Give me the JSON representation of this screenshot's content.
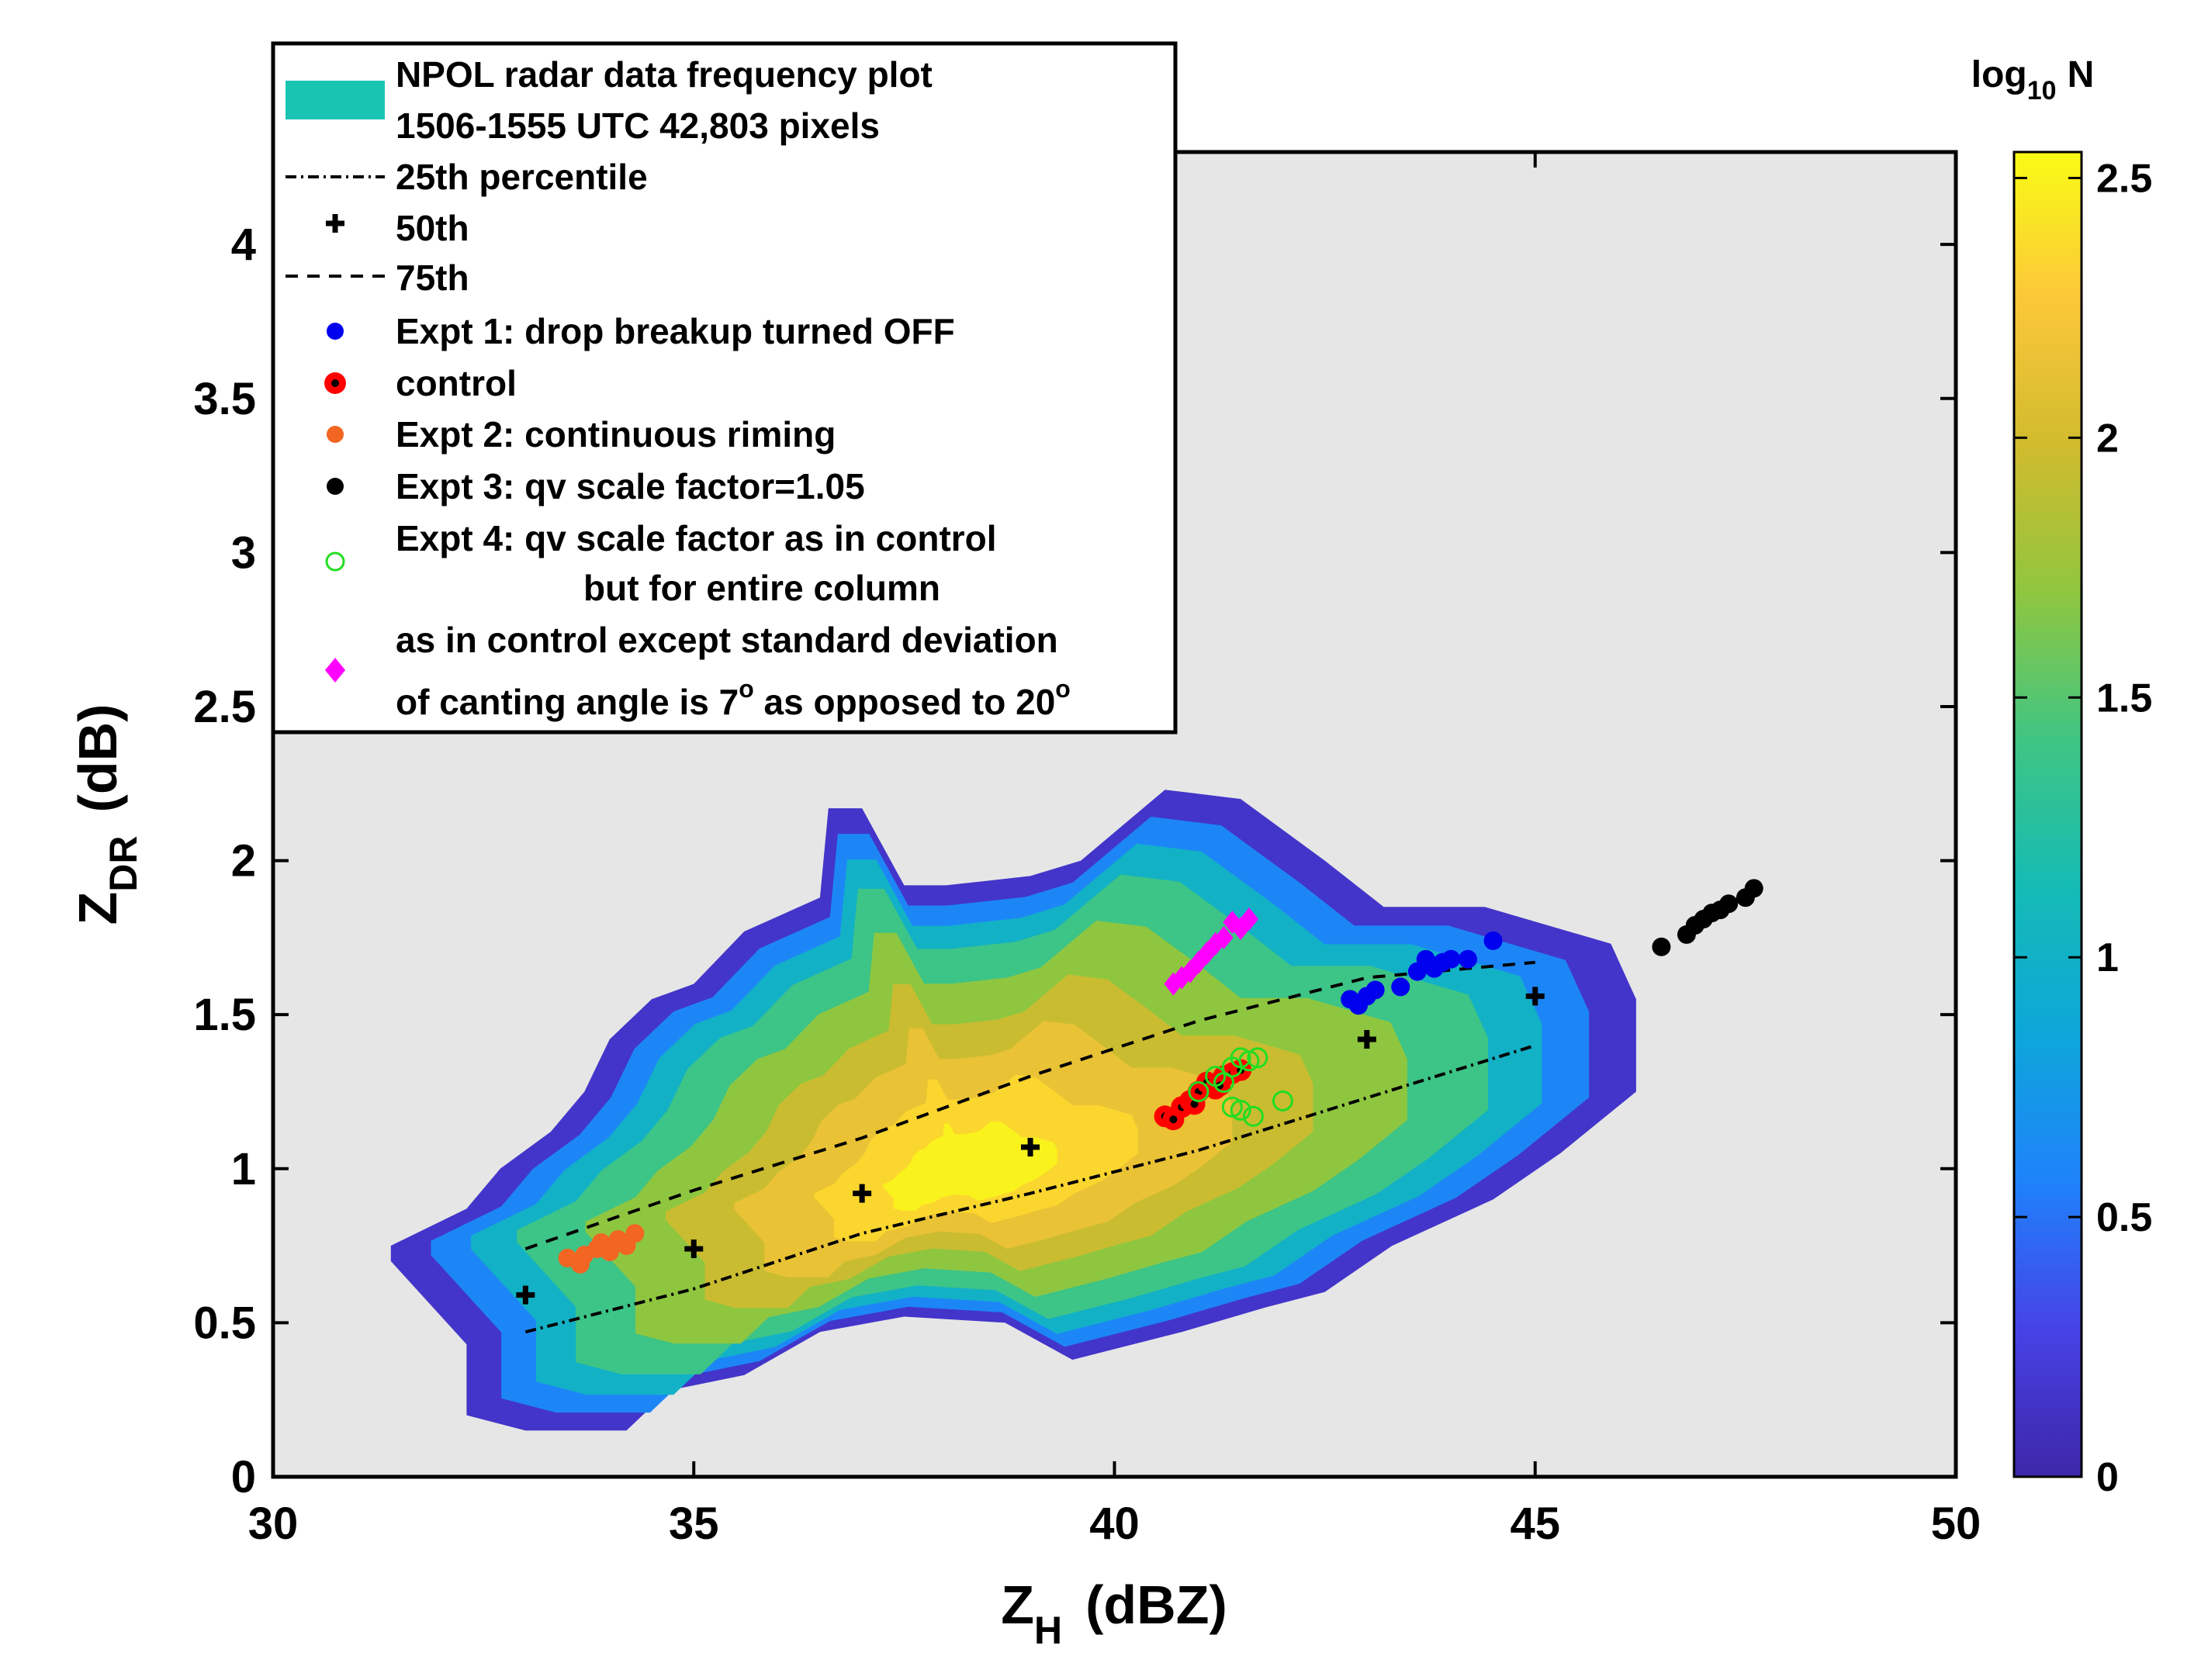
{
  "chart_data": {
    "type": "scatter",
    "title": "",
    "xlabel": {
      "main": "Z",
      "sub": "H",
      "unit": "(dBZ)"
    },
    "ylabel": {
      "main": "Z",
      "sub": "DR",
      "unit": "(dB)"
    },
    "xlim": [
      30,
      50
    ],
    "ylim": [
      0,
      4.3
    ],
    "xticks": [
      30,
      35,
      40,
      45,
      50
    ],
    "yticks": [
      0,
      0.5,
      1,
      1.5,
      2,
      2.5,
      3,
      3.5,
      4
    ],
    "xtick_labels": [
      "30",
      "35",
      "40",
      "45",
      "50"
    ],
    "ytick_labels": [
      "0",
      "0.5",
      "1",
      "1.5",
      "2",
      "2.5",
      "3",
      "3.5",
      "4"
    ],
    "grid": false,
    "legend_placement": "top-left",
    "background_color": "#e6e6e6",
    "colorbar": {
      "title": {
        "main": "log",
        "sub": "10",
        "var": "N"
      },
      "min": 0,
      "max": 2.55,
      "ticks": [
        0,
        0.5,
        1,
        1.5,
        2,
        2.5
      ],
      "tick_labels": [
        "0",
        "0.5",
        "1",
        "1.5",
        "2",
        "2.5"
      ],
      "colormap": "parula",
      "colors": [
        "#3e26a8",
        "#4742e6",
        "#1f82fb",
        "#0ea6da",
        "#15bbb5",
        "#3fc584",
        "#8fc640",
        "#d1bb2e",
        "#fcc73a",
        "#f9fb15"
      ]
    },
    "heatmap": {
      "name": "NPOL radar data frequency plot",
      "time_range": "1506-1555 UTC",
      "pixels": "42,803 pixels",
      "color": "#1ac4b3",
      "envelope": [
        [
          31.4,
          0.7
        ],
        [
          32.3,
          0.43
        ],
        [
          32.3,
          0.2
        ],
        [
          33,
          0.15
        ],
        [
          34.2,
          0.15
        ],
        [
          34.7,
          0.28
        ],
        [
          35.6,
          0.33
        ],
        [
          36.5,
          0.47
        ],
        [
          37.5,
          0.52
        ],
        [
          38.7,
          0.5
        ],
        [
          39.5,
          0.38
        ],
        [
          40.8,
          0.47
        ],
        [
          41.8,
          0.55
        ],
        [
          42.5,
          0.6
        ],
        [
          43.3,
          0.75
        ],
        [
          44.5,
          0.9
        ],
        [
          45.3,
          1.05
        ],
        [
          46.2,
          1.25
        ],
        [
          46.2,
          1.55
        ],
        [
          45.9,
          1.73
        ],
        [
          44.4,
          1.85
        ],
        [
          43.2,
          1.85
        ],
        [
          42.5,
          2.0
        ],
        [
          41.5,
          2.2
        ],
        [
          40.6,
          2.23
        ],
        [
          39.6,
          2.0
        ],
        [
          39.0,
          1.95
        ],
        [
          38.0,
          1.92
        ],
        [
          37.5,
          1.92
        ],
        [
          37.4,
          1.97
        ],
        [
          37.0,
          2.17
        ],
        [
          36.6,
          2.17
        ],
        [
          36.5,
          1.88
        ],
        [
          35.6,
          1.77
        ],
        [
          35.0,
          1.6
        ],
        [
          34.5,
          1.55
        ],
        [
          34.0,
          1.42
        ],
        [
          33.7,
          1.25
        ],
        [
          33.3,
          1.12
        ],
        [
          32.7,
          1.0
        ],
        [
          32.3,
          0.87
        ],
        [
          31.4,
          0.75
        ]
      ],
      "level_values": [
        0.6,
        1.0,
        1.4,
        1.7,
        1.95,
        2.15,
        2.35,
        2.5
      ],
      "level_scales": [
        0.93,
        0.86,
        0.78,
        0.66,
        0.52,
        0.4,
        0.26,
        0.14
      ],
      "peak": [
        38.2,
        0.98
      ]
    },
    "series": [
      {
        "name": "25th percentile",
        "type": "line",
        "style": "dashdot",
        "x": [
          33,
          35,
          37,
          39,
          41,
          43,
          45
        ],
        "y": [
          0.47,
          0.61,
          0.79,
          0.92,
          1.06,
          1.23,
          1.4
        ]
      },
      {
        "name": "50th",
        "type": "scatter",
        "marker": "plus",
        "x": [
          33,
          35,
          37,
          39,
          43,
          45
        ],
        "y": [
          0.59,
          0.74,
          0.92,
          1.07,
          1.42,
          1.56
        ]
      },
      {
        "name": "75th",
        "type": "line",
        "style": "dashed",
        "x": [
          33,
          35,
          37,
          39,
          41,
          43,
          45
        ],
        "y": [
          0.74,
          0.93,
          1.1,
          1.3,
          1.48,
          1.62,
          1.67
        ]
      },
      {
        "name": "Expt 1: drop breakup turned OFF",
        "type": "scatter",
        "marker": "circle",
        "color": "#0000ee",
        "x": [
          42.8,
          42.9,
          43.0,
          43.1,
          43.4,
          43.6,
          43.7,
          43.8,
          43.9,
          44.0,
          44.2,
          44.5
        ],
        "y": [
          1.55,
          1.53,
          1.56,
          1.58,
          1.59,
          1.64,
          1.68,
          1.65,
          1.67,
          1.68,
          1.68,
          1.74
        ]
      },
      {
        "name": "control",
        "type": "scatter",
        "marker": "circle-dot",
        "color": "#ff0000",
        "x": [
          40.6,
          40.7,
          40.8,
          40.9,
          41.0,
          41.1,
          41.2,
          41.3,
          41.4,
          41.5,
          40.95,
          41.25
        ],
        "y": [
          1.17,
          1.16,
          1.2,
          1.22,
          1.25,
          1.28,
          1.26,
          1.3,
          1.31,
          1.32,
          1.21,
          1.27
        ]
      },
      {
        "name": "Expt 2: continuous riming",
        "type": "scatter",
        "marker": "circle",
        "color": "#f26522",
        "x": [
          33.5,
          33.65,
          33.7,
          33.85,
          33.9,
          34.0,
          34.1,
          34.2,
          34.3
        ],
        "y": [
          0.71,
          0.69,
          0.72,
          0.74,
          0.76,
          0.73,
          0.77,
          0.75,
          0.79
        ]
      },
      {
        "name": "Expt 3: qv scale factor=1.05",
        "type": "scatter",
        "marker": "circle",
        "color": "#000000",
        "x": [
          46.5,
          46.8,
          46.9,
          47.0,
          47.1,
          47.2,
          47.3,
          47.5,
          47.6
        ],
        "y": [
          1.72,
          1.76,
          1.79,
          1.81,
          1.83,
          1.84,
          1.86,
          1.88,
          1.91
        ]
      },
      {
        "name": "Expt 4: qv scale factor as  in control",
        "name_line2": "but for entire column",
        "type": "scatter",
        "marker": "open-circle",
        "color": "#22dd22",
        "x": [
          41.0,
          41.2,
          41.3,
          41.4,
          41.5,
          41.6,
          41.7,
          41.4,
          41.5,
          41.65,
          42.0
        ],
        "y": [
          1.25,
          1.3,
          1.28,
          1.33,
          1.36,
          1.35,
          1.36,
          1.2,
          1.19,
          1.17,
          1.22
        ]
      },
      {
        "name": "as in control except standard deviation",
        "name_line2_pre": "of canting angle is 7",
        "name_line2_sup1": "o",
        "name_line2_mid": " as opposed to 20",
        "name_line2_sup2": "o",
        "type": "scatter",
        "marker": "diamond",
        "color": "#ff00ff",
        "x": [
          40.7,
          40.8,
          40.9,
          41.0,
          41.1,
          41.2,
          41.3,
          41.4,
          41.5,
          41.6
        ],
        "y": [
          1.6,
          1.62,
          1.64,
          1.67,
          1.7,
          1.73,
          1.75,
          1.8,
          1.78,
          1.81
        ]
      }
    ]
  }
}
